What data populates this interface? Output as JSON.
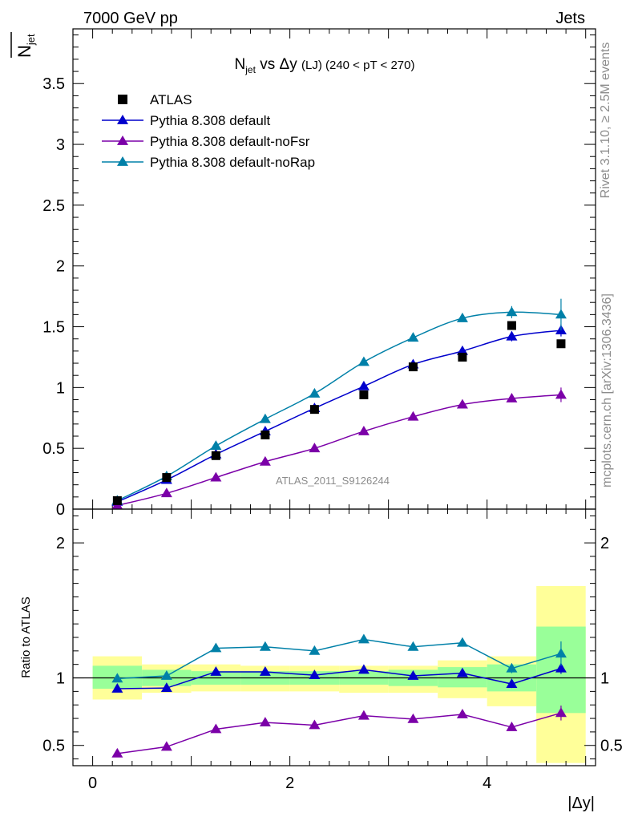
{
  "header": {
    "left": "7000 GeV pp",
    "right": "Jets"
  },
  "side_labels": {
    "rivet": "Rivet 3.1.10, ≥ 2.5M events",
    "mcplots": "mcplots.cern.ch [arXiv:1306.3436]"
  },
  "watermark": "ATLAS_2011_S9126244",
  "chart_data": [
    {
      "type": "scatter",
      "title": {
        "main": "N",
        "main_sub": "jet",
        "vs": " vs Δy ",
        "tag": "(LJ)",
        "range": " (240 < pT < 270)"
      },
      "ylabel": {
        "main": "N",
        "sub": "jet",
        "bar": true
      },
      "xlabel": "|Δy|",
      "xlim": [
        -0.2,
        5.1
      ],
      "ylim": [
        0,
        3.95
      ],
      "yticks": [
        {
          "v": 0,
          "label": "0"
        },
        {
          "v": 0.5,
          "label": "0.5"
        },
        {
          "v": 1,
          "label": "1"
        },
        {
          "v": 1.5,
          "label": "1.5"
        },
        {
          "v": 2,
          "label": "2"
        },
        {
          "v": 2.5,
          "label": "2.5"
        },
        {
          "v": 3,
          "label": "3"
        },
        {
          "v": 3.5,
          "label": "3.5"
        }
      ],
      "x": [
        0.25,
        0.75,
        1.25,
        1.75,
        2.25,
        2.75,
        3.25,
        3.75,
        4.25,
        4.75
      ],
      "series": [
        {
          "name": "ATLAS",
          "kind": "data",
          "color": "#000000",
          "values": [
            0.07,
            0.26,
            0.44,
            0.61,
            0.82,
            0.94,
            1.17,
            1.25,
            1.51,
            1.36
          ],
          "errors": [
            0.01,
            0.01,
            0.01,
            0.01,
            0.01,
            0.01,
            0.01,
            0.01,
            0.02,
            0.02
          ]
        },
        {
          "name": "Pythia 8.308 default",
          "kind": "mc",
          "color": "#0000cc",
          "values": [
            0.06,
            0.24,
            0.45,
            0.64,
            0.83,
            1.01,
            1.19,
            1.3,
            1.42,
            1.47
          ],
          "errors": [
            0.005,
            0.005,
            0.008,
            0.01,
            0.01,
            0.012,
            0.015,
            0.025,
            0.04,
            0.05
          ]
        },
        {
          "name": "Pythia 8.308 default-noFsr",
          "kind": "mc",
          "color": "#7b00a8",
          "values": [
            0.03,
            0.13,
            0.26,
            0.39,
            0.5,
            0.64,
            0.76,
            0.86,
            0.91,
            0.94
          ],
          "errors": [
            0.005,
            0.005,
            0.006,
            0.008,
            0.01,
            0.012,
            0.015,
            0.02,
            0.03,
            0.06
          ]
        },
        {
          "name": "Pythia 8.308 default-noRap",
          "kind": "mc",
          "color": "#0080a8",
          "values": [
            0.07,
            0.27,
            0.52,
            0.74,
            0.95,
            1.21,
            1.41,
            1.57,
            1.62,
            1.6
          ],
          "errors": [
            0.005,
            0.005,
            0.008,
            0.01,
            0.012,
            0.015,
            0.02,
            0.03,
            0.05,
            0.13
          ]
        }
      ],
      "legend_position": "top-left"
    },
    {
      "type": "line",
      "ylabel": "Ratio to ATLAS",
      "xlim": [
        -0.2,
        5.1
      ],
      "ylim": [
        0.35,
        2.25
      ],
      "yticks": [
        {
          "v": 0.5,
          "label": "0.5"
        },
        {
          "v": 1,
          "label": "1"
        },
        {
          "v": 2,
          "label": "2"
        }
      ],
      "xticks": [
        {
          "v": 0,
          "label": "0"
        },
        {
          "v": 2,
          "label": "2"
        },
        {
          "v": 4,
          "label": "4"
        }
      ],
      "bands": [
        {
          "x0": 0.0,
          "x1": 0.5,
          "yellow": [
            0.84,
            1.16
          ],
          "green": [
            0.92,
            1.09
          ]
        },
        {
          "x0": 0.5,
          "x1": 1.0,
          "yellow": [
            0.89,
            1.1
          ],
          "green": [
            0.94,
            1.06
          ]
        },
        {
          "x0": 1.0,
          "x1": 1.5,
          "yellow": [
            0.9,
            1.1
          ],
          "green": [
            0.95,
            1.05
          ]
        },
        {
          "x0": 1.5,
          "x1": 2.0,
          "yellow": [
            0.9,
            1.09
          ],
          "green": [
            0.95,
            1.05
          ]
        },
        {
          "x0": 2.0,
          "x1": 2.5,
          "yellow": [
            0.9,
            1.09
          ],
          "green": [
            0.95,
            1.05
          ]
        },
        {
          "x0": 2.5,
          "x1": 3.0,
          "yellow": [
            0.89,
            1.09
          ],
          "green": [
            0.95,
            1.05
          ]
        },
        {
          "x0": 3.0,
          "x1": 3.5,
          "yellow": [
            0.89,
            1.09
          ],
          "green": [
            0.94,
            1.06
          ]
        },
        {
          "x0": 3.5,
          "x1": 4.0,
          "yellow": [
            0.85,
            1.13
          ],
          "green": [
            0.93,
            1.08
          ]
        },
        {
          "x0": 4.0,
          "x1": 4.5,
          "yellow": [
            0.79,
            1.16
          ],
          "green": [
            0.9,
            1.1
          ]
        },
        {
          "x0": 4.5,
          "x1": 5.0,
          "yellow": [
            0.37,
            1.68
          ],
          "green": [
            0.74,
            1.38
          ]
        }
      ],
      "series": [
        {
          "name": "Pythia 8.308 default",
          "color": "#0000cc",
          "values": [
            0.92,
            0.925,
            1.045,
            1.045,
            1.02,
            1.06,
            1.015,
            1.035,
            0.955,
            1.07
          ],
          "errors": [
            0.01,
            0.01,
            0.01,
            0.01,
            0.01,
            0.01,
            0.01,
            0.015,
            0.03,
            0.04
          ]
        },
        {
          "name": "Pythia 8.308 default-noFsr",
          "color": "#7b00a8",
          "values": [
            0.44,
            0.49,
            0.62,
            0.67,
            0.65,
            0.72,
            0.695,
            0.73,
            0.635,
            0.74
          ],
          "errors": [
            0.02,
            0.01,
            0.01,
            0.01,
            0.01,
            0.01,
            0.01,
            0.01,
            0.02,
            0.055
          ]
        },
        {
          "name": "Pythia 8.308 default-noRap",
          "color": "#0080a8",
          "values": [
            0.995,
            1.015,
            1.22,
            1.23,
            1.2,
            1.285,
            1.23,
            1.26,
            1.07,
            1.18
          ],
          "errors": [
            0.01,
            0.01,
            0.01,
            0.01,
            0.01,
            0.01,
            0.01,
            0.015,
            0.035,
            0.09
          ]
        }
      ]
    }
  ]
}
